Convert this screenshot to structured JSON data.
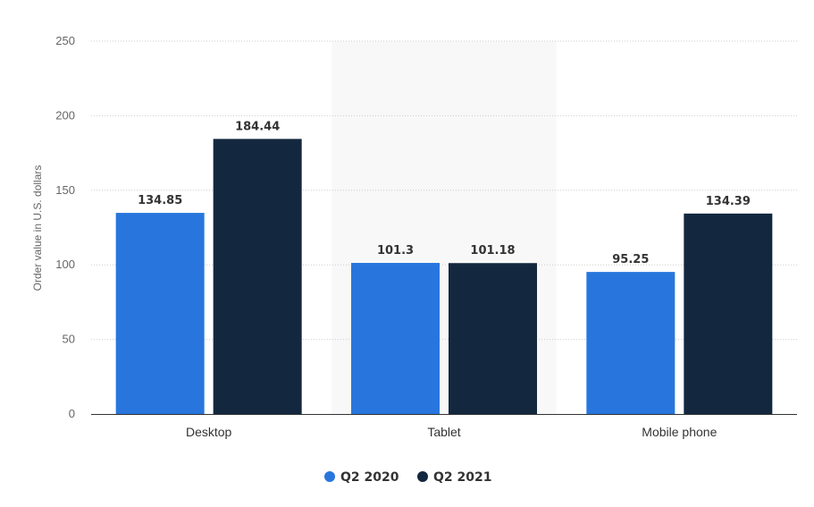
{
  "chart_data": {
    "type": "bar",
    "categories": [
      "Desktop",
      "Tablet",
      "Mobile phone"
    ],
    "series": [
      {
        "name": "Q2 2020",
        "values": [
          134.85,
          101.3,
          95.25
        ],
        "labels": [
          "134.85",
          "101.3",
          "95.25"
        ],
        "color": "#2876dd"
      },
      {
        "name": "Q2 2021",
        "values": [
          184.44,
          101.18,
          134.39
        ],
        "labels": [
          "184.44",
          "101.18",
          "134.39"
        ],
        "color": "#13283f"
      }
    ],
    "title": "",
    "xlabel": "",
    "ylabel": "Order value in U.S. dollars",
    "ylim": [
      0,
      250
    ],
    "yticks": [
      0,
      50,
      100,
      150,
      200,
      250
    ],
    "grid": true,
    "legend": "bottom-center",
    "highlight_category": "Tablet",
    "highlight_color": "#f8f8f8",
    "axis_color": "#333333",
    "grid_color": "#cccccc"
  }
}
